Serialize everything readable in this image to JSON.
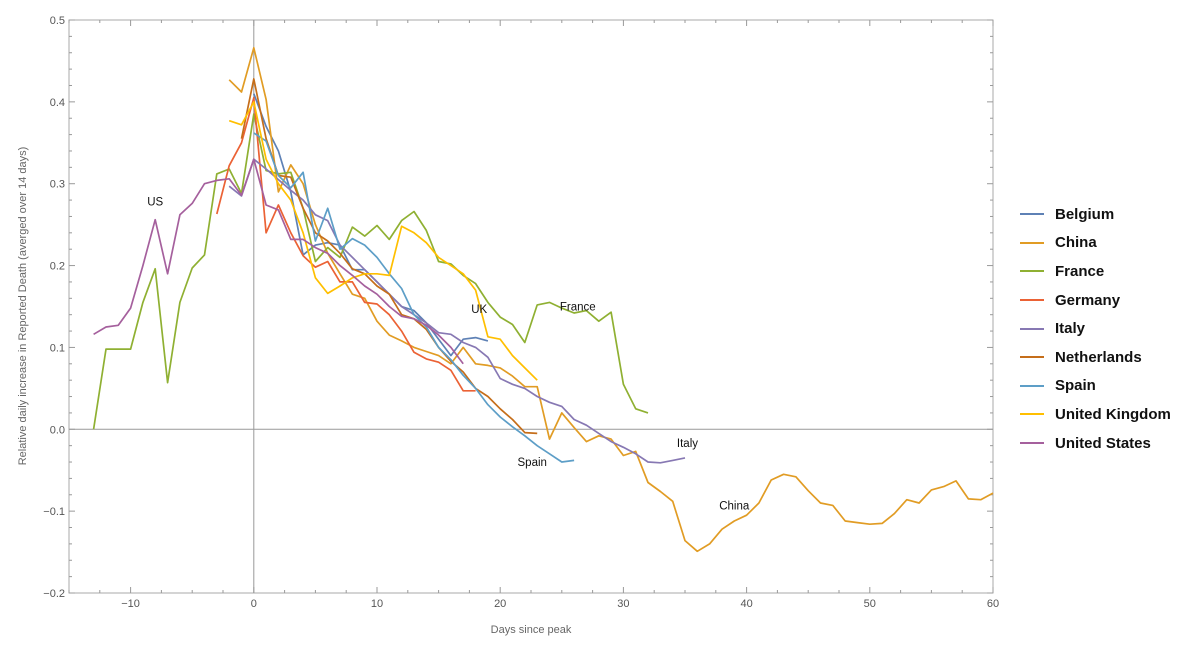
{
  "chart_data": {
    "type": "line",
    "title": "",
    "xlabel": "Days since peak",
    "ylabel": "Relative daily increase in Reported Death (averged over 14 days)",
    "xlim": [
      -15,
      60
    ],
    "ylim": [
      -0.2,
      0.5
    ],
    "xticks": [
      -10,
      0,
      10,
      20,
      30,
      40,
      50,
      60
    ],
    "yticks": [
      "-0.2",
      "-0.1",
      "0.0",
      "0.1",
      "0.2",
      "0.3",
      "0.4",
      "0.5"
    ],
    "grid": false,
    "legend_position": "right",
    "series": [
      {
        "name": "Belgium",
        "color": "#5E81B5",
        "x_start": 0,
        "values": [
          0.41,
          0.37,
          0.34,
          0.29,
          0.213,
          0.225,
          0.228,
          0.225,
          0.195,
          0.195,
          0.18,
          0.165,
          0.15,
          0.145,
          0.13,
          0.11,
          0.09,
          0.11,
          0.112,
          0.108
        ]
      },
      {
        "name": "China",
        "color": "#E19C24",
        "x_start": -2,
        "values": [
          0.427,
          0.412,
          0.466,
          0.403,
          0.29,
          0.323,
          0.3,
          0.25,
          0.215,
          0.19,
          0.165,
          0.16,
          0.132,
          0.115,
          0.108,
          0.1,
          0.095,
          0.09,
          0.08,
          0.1,
          0.08,
          0.078,
          0.075,
          0.065,
          0.052,
          0.052,
          -0.012,
          0.02,
          0.002,
          -0.015,
          -0.008,
          -0.012,
          -0.032,
          -0.027,
          -0.065,
          -0.076,
          -0.088,
          -0.136,
          -0.149,
          -0.14,
          -0.122,
          -0.112,
          -0.105,
          -0.09,
          -0.062,
          -0.055,
          -0.058,
          -0.075,
          -0.09,
          -0.093,
          -0.112,
          -0.114,
          -0.116,
          -0.115,
          -0.103,
          -0.086,
          -0.09,
          -0.074,
          -0.07,
          -0.063,
          -0.085,
          -0.086,
          -0.078
        ]
      },
      {
        "name": "France",
        "color": "#8FB032",
        "x_start": -13,
        "values": [
          0,
          0.098,
          0.098,
          0.098,
          0.155,
          0.196,
          0.057,
          0.155,
          0.197,
          0.213,
          0.312,
          0.318,
          0.288,
          0.385,
          0.316,
          0.312,
          0.314,
          0.27,
          0.205,
          0.222,
          0.21,
          0.247,
          0.236,
          0.249,
          0.232,
          0.255,
          0.266,
          0.243,
          0.205,
          0.202,
          0.188,
          0.178,
          0.155,
          0.137,
          0.128,
          0.106,
          0.152,
          0.155,
          0.148,
          0.142,
          0.145,
          0.132,
          0.143,
          0.055,
          0.025,
          0.02
        ]
      },
      {
        "name": "Germany",
        "color": "#EB6235",
        "x_start": -3,
        "values": [
          0.263,
          0.322,
          0.35,
          0.405,
          0.24,
          0.274,
          0.24,
          0.212,
          0.198,
          0.205,
          0.18,
          0.18,
          0.155,
          0.153,
          0.14,
          0.12,
          0.094,
          0.086,
          0.082,
          0.072,
          0.047,
          0.047
        ]
      },
      {
        "name": "Italy",
        "color": "#8778B3",
        "x_start": -2,
        "values": [
          0.297,
          0.285,
          0.33,
          0.318,
          0.305,
          0.292,
          0.28,
          0.262,
          0.255,
          0.225,
          0.21,
          0.195,
          0.18,
          0.165,
          0.15,
          0.14,
          0.13,
          0.118,
          0.116,
          0.106,
          0.1,
          0.088,
          0.062,
          0.055,
          0.05,
          0.04,
          0.033,
          0.028,
          0.012,
          0.005,
          -0.005,
          -0.015,
          -0.022,
          -0.03,
          -0.04,
          -0.041,
          -0.038,
          -0.035
        ]
      },
      {
        "name": "Netherlands",
        "color": "#C56E1A",
        "x_start": -1,
        "values": [
          0.355,
          0.428,
          0.355,
          0.31,
          0.308,
          0.27,
          0.24,
          0.23,
          0.215,
          0.196,
          0.19,
          0.175,
          0.165,
          0.14,
          0.135,
          0.122,
          0.1,
          0.083,
          0.07,
          0.05,
          0.04,
          0.025,
          0.012,
          -0.004,
          -0.005
        ]
      },
      {
        "name": "Spain",
        "color": "#5D9EC7",
        "x_start": 0,
        "values": [
          0.362,
          0.352,
          0.31,
          0.295,
          0.314,
          0.23,
          0.27,
          0.22,
          0.233,
          0.225,
          0.21,
          0.19,
          0.172,
          0.14,
          0.125,
          0.1,
          0.085,
          0.066,
          0.05,
          0.03,
          0.015,
          0.003,
          -0.008,
          -0.02,
          -0.03,
          -0.04,
          -0.038
        ]
      },
      {
        "name": "United Kingdom",
        "color": "#FFBF00",
        "x_start": -2,
        "values": [
          0.377,
          0.372,
          0.4,
          0.33,
          0.3,
          0.28,
          0.24,
          0.185,
          0.166,
          0.175,
          0.185,
          0.19,
          0.19,
          0.188,
          0.248,
          0.24,
          0.228,
          0.21,
          0.2,
          0.19,
          0.17,
          0.113,
          0.11,
          0.09,
          0.075,
          0.06
        ]
      },
      {
        "name": "United States",
        "color": "#A5609D",
        "x_start": -13,
        "values": [
          0.116,
          0.125,
          0.127,
          0.148,
          0.2,
          0.256,
          0.19,
          0.262,
          0.276,
          0.3,
          0.304,
          0.306,
          0.286,
          0.33,
          0.274,
          0.268,
          0.232,
          0.232,
          0.222,
          0.215,
          0.2,
          0.188,
          0.175,
          0.165,
          0.15,
          0.138,
          0.135,
          0.127,
          0.115,
          0.1,
          0.08
        ]
      }
    ],
    "annotations": [
      {
        "text": "US",
        "x": -8,
        "y": 0.278
      },
      {
        "text": "UK",
        "x": 18.3,
        "y": 0.147
      },
      {
        "text": "France",
        "x": 26.3,
        "y": 0.15
      },
      {
        "text": "Italy",
        "x": 35.2,
        "y": -0.017
      },
      {
        "text": "Spain",
        "x": 22.6,
        "y": -0.04
      },
      {
        "text": "China",
        "x": 39,
        "y": -0.093
      }
    ]
  }
}
